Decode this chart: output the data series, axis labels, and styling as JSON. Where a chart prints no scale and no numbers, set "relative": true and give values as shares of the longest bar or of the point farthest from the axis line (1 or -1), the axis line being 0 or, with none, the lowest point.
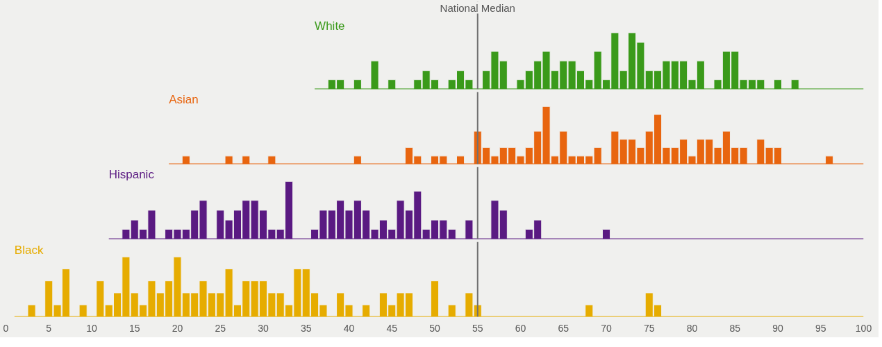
{
  "chart_data": [
    {
      "type": "bar",
      "relative": true,
      "xlim": [
        0,
        100
      ],
      "tick_labels": false,
      "grid": false,
      "legend": false,
      "ref_lines": [
        {
          "axis": "x",
          "value": 55,
          "label": "National Median",
          "color": "#707070"
        }
      ],
      "x": [
        38,
        39,
        41,
        43,
        45,
        48,
        49,
        50,
        52,
        53,
        54,
        56,
        57,
        58,
        60,
        61,
        62,
        63,
        64,
        65,
        66,
        67,
        68,
        69,
        70,
        71,
        72,
        73,
        74,
        75,
        76,
        77,
        78,
        79,
        80,
        81,
        83,
        84,
        85,
        86,
        87,
        88,
        90,
        92
      ],
      "series": [
        {
          "name": "White",
          "color": "#3a9a1a",
          "values": [
            0.17,
            0.17,
            0.17,
            0.5,
            0.17,
            0.17,
            0.33,
            0.17,
            0.17,
            0.33,
            0.17,
            0.33,
            0.67,
            0.5,
            0.17,
            0.33,
            0.5,
            0.67,
            0.33,
            0.5,
            0.5,
            0.33,
            0.17,
            0.67,
            0.17,
            1,
            0.33,
            1,
            0.83,
            0.33,
            0.33,
            0.5,
            0.5,
            0.5,
            0.17,
            0.5,
            0.17,
            0.67,
            0.67,
            0.17,
            0.17,
            0.17,
            0.17,
            0.17
          ]
        }
      ]
    },
    {
      "type": "bar",
      "relative": true,
      "xlim": [
        0,
        100
      ],
      "tick_labels": false,
      "grid": false,
      "legend": false,
      "ref_lines": [
        {
          "axis": "x",
          "value": 55,
          "color": "#707070"
        }
      ],
      "x": [
        21,
        26,
        28,
        31,
        41,
        47,
        48,
        50,
        51,
        53,
        55,
        56,
        57,
        58,
        59,
        60,
        61,
        62,
        63,
        64,
        65,
        66,
        67,
        68,
        69,
        71,
        72,
        73,
        74,
        75,
        76,
        77,
        78,
        79,
        80,
        81,
        82,
        83,
        84,
        85,
        86,
        88,
        89,
        90,
        96
      ],
      "series": [
        {
          "name": "Asian",
          "color": "#e8650f",
          "values": [
            0.14,
            0.14,
            0.14,
            0.14,
            0.14,
            0.29,
            0.14,
            0.14,
            0.14,
            0.14,
            0.57,
            0.29,
            0.14,
            0.29,
            0.29,
            0.14,
            0.29,
            0.57,
            1,
            0.14,
            0.57,
            0.14,
            0.14,
            0.14,
            0.29,
            0.57,
            0.43,
            0.43,
            0.29,
            0.57,
            0.86,
            0.29,
            0.29,
            0.43,
            0.14,
            0.43,
            0.43,
            0.29,
            0.57,
            0.29,
            0.29,
            0.43,
            0.29,
            0.29,
            0.14
          ]
        }
      ]
    },
    {
      "type": "bar",
      "relative": true,
      "xlim": [
        0,
        100
      ],
      "tick_labels": false,
      "grid": false,
      "legend": false,
      "ref_lines": [
        {
          "axis": "x",
          "value": 55,
          "color": "#707070"
        }
      ],
      "x": [
        14,
        15,
        16,
        17,
        19,
        20,
        21,
        22,
        23,
        25,
        26,
        27,
        28,
        29,
        30,
        31,
        32,
        33,
        36,
        37,
        38,
        39,
        40,
        41,
        42,
        43,
        44,
        45,
        46,
        47,
        48,
        49,
        50,
        51,
        52,
        54,
        57,
        58,
        61,
        62,
        70
      ],
      "series": [
        {
          "name": "Hispanic",
          "color": "#5a1a82",
          "values": [
            0.17,
            0.33,
            0.17,
            0.5,
            0.17,
            0.17,
            0.17,
            0.5,
            0.67,
            0.5,
            0.33,
            0.5,
            0.67,
            0.67,
            0.5,
            0.17,
            0.17,
            1,
            0.17,
            0.5,
            0.5,
            0.67,
            0.5,
            0.67,
            0.5,
            0.17,
            0.33,
            0.17,
            0.67,
            0.5,
            0.83,
            0.17,
            0.33,
            0.33,
            0.17,
            0.33,
            0.67,
            0.5,
            0.17,
            0.33,
            0.17
          ]
        }
      ]
    },
    {
      "type": "bar",
      "relative": true,
      "xlim": [
        0,
        100
      ],
      "tick_labels": "x",
      "grid": false,
      "legend": false,
      "xticks": [
        0,
        5,
        10,
        15,
        20,
        25,
        30,
        35,
        40,
        45,
        50,
        55,
        60,
        65,
        70,
        75,
        80,
        85,
        90,
        95,
        100
      ],
      "ref_lines": [
        {
          "axis": "x",
          "value": 55,
          "color": "#707070"
        }
      ],
      "x": [
        3,
        5,
        6,
        7,
        9,
        11,
        12,
        13,
        14,
        15,
        16,
        17,
        18,
        19,
        20,
        21,
        22,
        23,
        24,
        25,
        26,
        27,
        28,
        29,
        30,
        31,
        32,
        33,
        34,
        35,
        36,
        37,
        39,
        40,
        42,
        44,
        45,
        46,
        47,
        50,
        52,
        54,
        55,
        68,
        75,
        76
      ],
      "series": [
        {
          "name": "Black",
          "color": "#e6ac00",
          "values": [
            0.2,
            0.6,
            0.2,
            0.8,
            0.2,
            0.6,
            0.2,
            0.4,
            1,
            0.4,
            0.2,
            0.6,
            0.4,
            0.6,
            1,
            0.4,
            0.4,
            0.6,
            0.4,
            0.4,
            0.8,
            0.2,
            0.6,
            0.6,
            0.6,
            0.4,
            0.4,
            0.2,
            0.8,
            0.8,
            0.4,
            0.2,
            0.4,
            0.2,
            0.2,
            0.4,
            0.2,
            0.4,
            0.4,
            0.6,
            0.2,
            0.4,
            0.2,
            0.2,
            0.4,
            0.2
          ]
        }
      ]
    }
  ]
}
